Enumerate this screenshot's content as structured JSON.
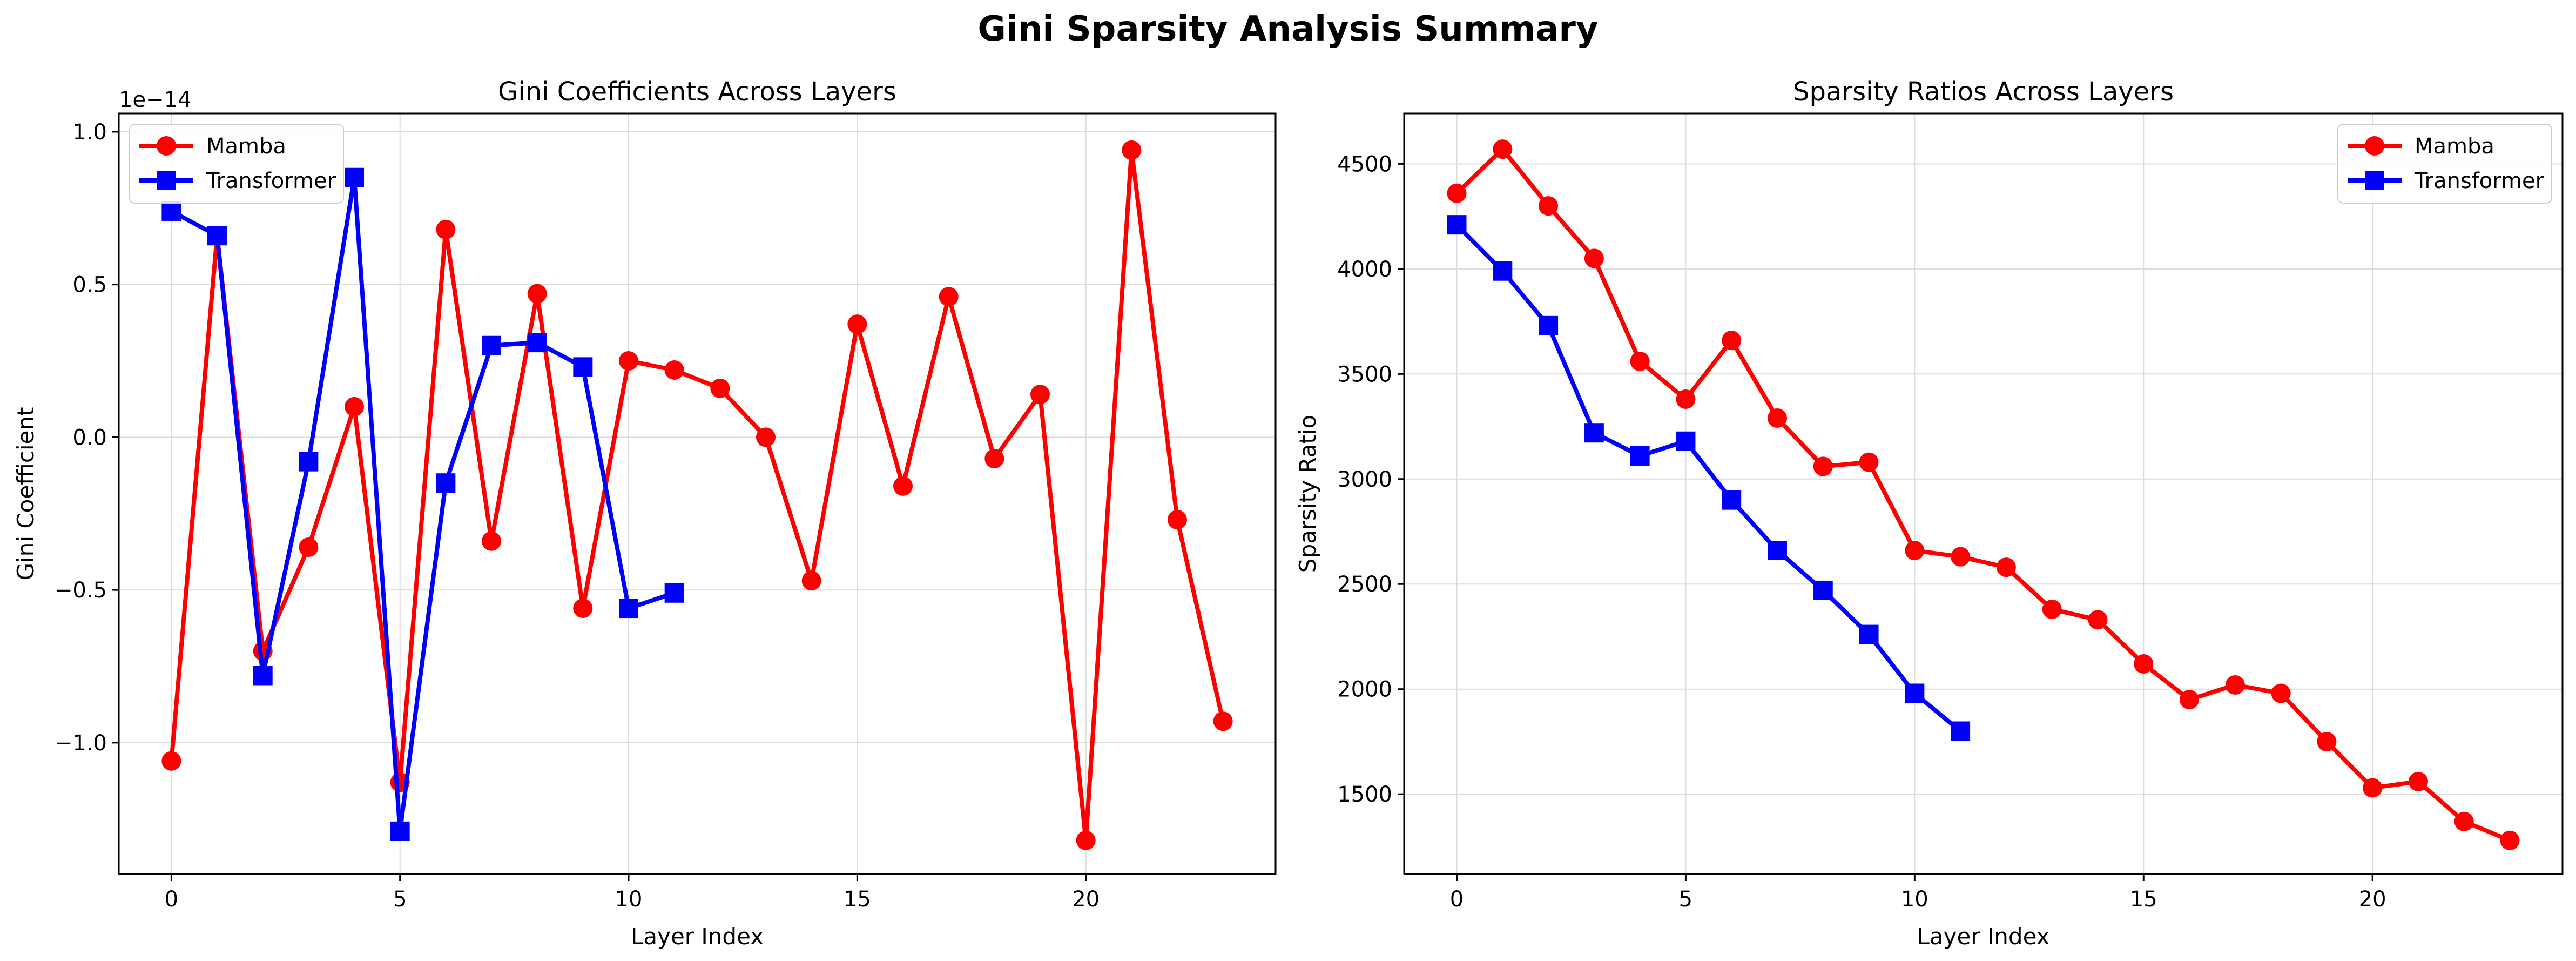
{
  "figure_title": "Gini Sparsity Analysis Summary",
  "chart_data": [
    {
      "type": "line",
      "title": "Gini Coefficients Across Layers",
      "xlabel": "Layer Index",
      "ylabel": "Gini Coefficient",
      "offset_text": "1e−14",
      "xlim": [
        -1.15,
        24.15
      ],
      "ylim": [
        -1.43,
        1.06
      ],
      "xticks": [
        0,
        5,
        10,
        15,
        20
      ],
      "xtick_labels": [
        "0",
        "5",
        "10",
        "15",
        "20"
      ],
      "yticks": [
        -1.0,
        -0.5,
        0.0,
        0.5,
        1.0
      ],
      "ytick_labels": [
        "−1.0",
        "−0.5",
        "0.0",
        "0.5",
        "1.0"
      ],
      "grid": true,
      "legend_position": "upper-left",
      "series": [
        {
          "name": "Mamba",
          "color": "#ff0000",
          "marker": "circle",
          "x": [
            0,
            1,
            2,
            3,
            4,
            5,
            6,
            7,
            8,
            9,
            10,
            11,
            12,
            13,
            14,
            15,
            16,
            17,
            18,
            19,
            20,
            21,
            22,
            23
          ],
          "y": [
            -1.06,
            0.66,
            -0.7,
            -0.36,
            0.1,
            -1.13,
            0.68,
            -0.34,
            0.47,
            -0.56,
            0.25,
            0.22,
            0.16,
            0.0,
            -0.47,
            0.37,
            -0.16,
            0.46,
            -0.07,
            0.14,
            -1.32,
            0.94,
            -0.27,
            -0.93
          ]
        },
        {
          "name": "Transformer",
          "color": "#0000ff",
          "marker": "square",
          "x": [
            0,
            1,
            2,
            3,
            4,
            5,
            6,
            7,
            8,
            9,
            10,
            11
          ],
          "y": [
            0.74,
            0.66,
            -0.78,
            -0.08,
            0.85,
            -1.29,
            -0.15,
            0.3,
            0.31,
            0.23,
            -0.56,
            -0.51
          ]
        }
      ]
    },
    {
      "type": "line",
      "title": "Sparsity Ratios Across Layers",
      "xlabel": "Layer Index",
      "ylabel": "Sparsity Ratio",
      "xlim": [
        -1.15,
        24.15
      ],
      "ylim": [
        1120,
        4740
      ],
      "xticks": [
        0,
        5,
        10,
        15,
        20
      ],
      "xtick_labels": [
        "0",
        "5",
        "10",
        "15",
        "20"
      ],
      "yticks": [
        1500,
        2000,
        2500,
        3000,
        3500,
        4000,
        4500
      ],
      "ytick_labels": [
        "1500",
        "2000",
        "2500",
        "3000",
        "3500",
        "4000",
        "4500"
      ],
      "grid": true,
      "legend_position": "upper-right",
      "series": [
        {
          "name": "Mamba",
          "color": "#ff0000",
          "marker": "circle",
          "x": [
            0,
            1,
            2,
            3,
            4,
            5,
            6,
            7,
            8,
            9,
            10,
            11,
            12,
            13,
            14,
            15,
            16,
            17,
            18,
            19,
            20,
            21,
            22,
            23
          ],
          "y": [
            4360,
            4570,
            4300,
            4050,
            3560,
            3380,
            3660,
            3290,
            3060,
            3080,
            2660,
            2630,
            2580,
            2380,
            2330,
            2120,
            1950,
            2020,
            1980,
            1750,
            1530,
            1560,
            1370,
            1280
          ]
        },
        {
          "name": "Transformer",
          "color": "#0000ff",
          "marker": "square",
          "x": [
            0,
            1,
            2,
            3,
            4,
            5,
            6,
            7,
            8,
            9,
            10,
            11
          ],
          "y": [
            4210,
            3990,
            3730,
            3220,
            3110,
            3180,
            2900,
            2660,
            2470,
            2260,
            1980,
            1800
          ]
        }
      ]
    }
  ]
}
